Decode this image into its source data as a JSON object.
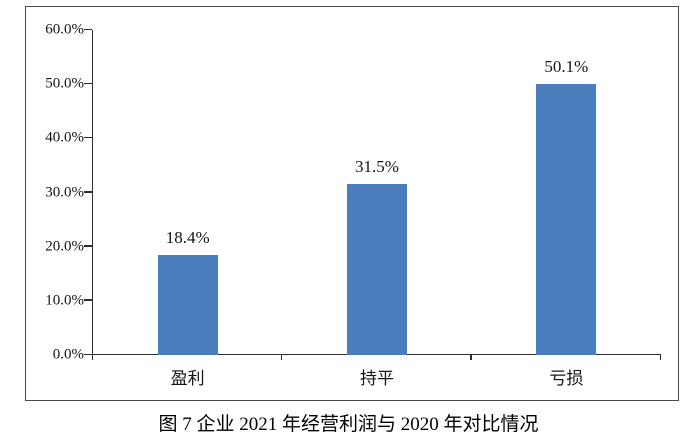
{
  "figure": {
    "caption": "图 7 企业 2021 年经营利润与 2020 年对比情况"
  },
  "chart_data": {
    "type": "bar",
    "title": "",
    "xlabel": "",
    "ylabel": "",
    "categories": [
      "盈利",
      "持平",
      "亏损"
    ],
    "values": [
      18.4,
      31.5,
      50.1
    ],
    "data_labels": [
      "18.4%",
      "31.5%",
      "50.1%"
    ],
    "ylim": [
      0,
      60
    ],
    "ytick_step": 10,
    "ytick_labels": [
      "0.0%",
      "10.0%",
      "20.0%",
      "30.0%",
      "40.0%",
      "50.0%",
      "60.0%"
    ],
    "grid": false,
    "legend_position": "none",
    "bar_color": "#4A7DBC",
    "axis_color": "#2E2E2E"
  }
}
